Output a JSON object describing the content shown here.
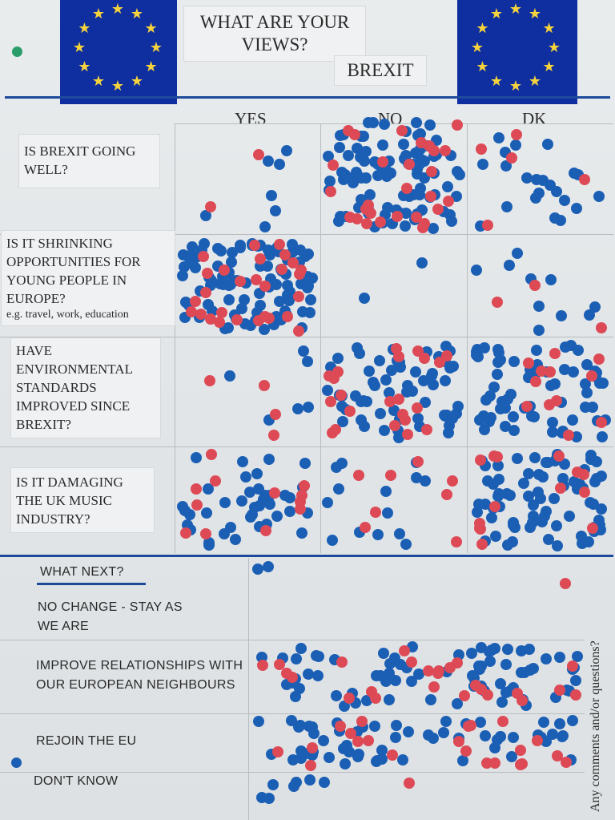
{
  "header": {
    "title_line1": "WHAT ARE YOUR",
    "title_line2": "VIEWS?",
    "subtitle": "BREXIT"
  },
  "columns": [
    "YES",
    "NO",
    "DK"
  ],
  "questions": [
    {
      "label": "IS BREXIT GOING WELL?"
    },
    {
      "label": "IS IT SHRINKING OPPORTUNITIES FOR YOUNG PEOPLE IN EUROPE?",
      "note": "e.g. travel, work, education"
    },
    {
      "label": "HAVE ENVIRONMENTAL STANDARDS IMPROVED SINCE BREXIT?"
    },
    {
      "label": "IS IT DAMAGING THE UK MUSIC INDUSTRY?"
    }
  ],
  "what_next": {
    "heading": "WHAT NEXT?",
    "options": [
      {
        "label": "NO CHANGE - STAY AS WE ARE"
      },
      {
        "label": "IMPROVE RELATIONSHIPS WITH OUR EUROPEAN NEIGHBOURS"
      },
      {
        "label": "REJOIN THE EU"
      },
      {
        "label": "DON'T KNOW"
      }
    ]
  },
  "side_note": "Any comments and/or questions?",
  "colors": {
    "dot_blue": "#1b5fb5",
    "dot_red": "#dd4a56",
    "flag_blue": "#0f2fa0",
    "star_yellow": "#f6d33c",
    "rule_blue": "#1e4a9c"
  },
  "icons": {
    "flag": "eu-flag",
    "star": "star-icon",
    "pin": "push-pin-icon"
  }
}
